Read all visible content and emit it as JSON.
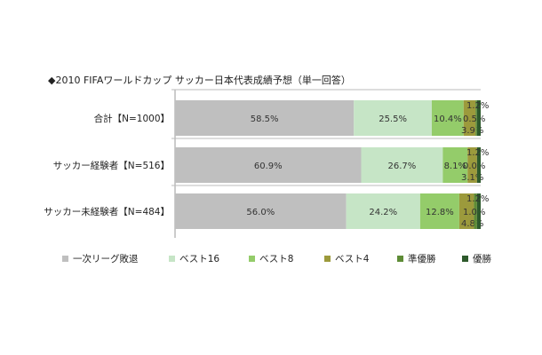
{
  "chart_data": {
    "type": "bar",
    "orientation": "horizontal",
    "stacked": true,
    "title": "◆2010 FIFAワールドカップ サッカー日本代表成績予想（単一回答）",
    "categories": [
      "合計【N=1000】",
      "サッカー経験者【N=516】",
      "サッカー未経験者【N=484】"
    ],
    "xlim": [
      0,
      100
    ],
    "legend_position": "bottom",
    "series": [
      {
        "name": "一次リーグ敗退",
        "color": "#bfbfbf",
        "values": [
          58.5,
          60.9,
          56.0
        ],
        "labels": [
          "58.5%",
          "60.9%",
          "56.0%"
        ]
      },
      {
        "name": "ベスト16",
        "color": "#c6e5c6",
        "values": [
          25.5,
          26.7,
          24.2
        ],
        "labels": [
          "25.5%",
          "26.7%",
          "24.2%"
        ]
      },
      {
        "name": "ベスト8",
        "color": "#94cc6a",
        "values": [
          10.4,
          8.1,
          12.8
        ],
        "labels": [
          "10.4%",
          "8.1%",
          "12.8%"
        ]
      },
      {
        "name": "ベスト4",
        "color": "#9c9a3c",
        "values": [
          3.9,
          3.1,
          4.8
        ],
        "labels": [
          "3.9%",
          "3.1%",
          "4.8%"
        ]
      },
      {
        "name": "準優勝",
        "color": "#5e8c36",
        "values": [
          0.5,
          0.0,
          1.0
        ],
        "labels": [
          "0.5%",
          "0.0%",
          "1.0%"
        ]
      },
      {
        "name": "優勝",
        "color": "#2e5a2c",
        "values": [
          1.2,
          1.2,
          1.2
        ],
        "labels": [
          "1.2%",
          "1.2%",
          "1.2%"
        ]
      }
    ]
  }
}
